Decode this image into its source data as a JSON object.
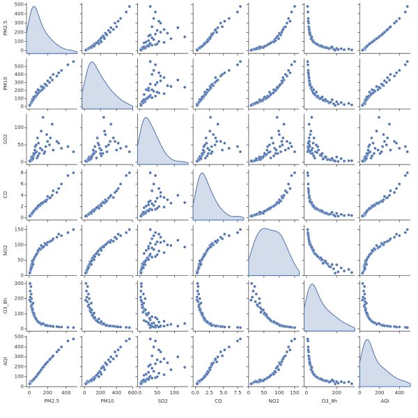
{
  "chart_data": {
    "type": "pairplot",
    "color": "#4c72b0",
    "variables": [
      {
        "name": "PM2.5",
        "lim": [
          -30,
          520
        ],
        "xticks": [
          0,
          200,
          400
        ],
        "yticks": [
          0,
          100,
          200,
          300,
          400,
          500
        ],
        "values": [
          20,
          35,
          15,
          50,
          80,
          120,
          160,
          220,
          300,
          420,
          25,
          40,
          60,
          90,
          10,
          30,
          45,
          70,
          100,
          140,
          190,
          250,
          350,
          480,
          18,
          22,
          28,
          38,
          55,
          65,
          85,
          110,
          130,
          170,
          200,
          260,
          12,
          8,
          33,
          42,
          48,
          75,
          95,
          150,
          180,
          230,
          320,
          5
        ]
      },
      {
        "name": "PM10",
        "lim": [
          -30,
          600
        ],
        "xticks": [
          0,
          200,
          400,
          600
        ],
        "yticks": [
          0,
          100,
          200,
          300,
          400,
          500
        ],
        "values": [
          45,
          70,
          35,
          95,
          140,
          190,
          230,
          300,
          380,
          520,
          60,
          80,
          110,
          160,
          25,
          55,
          100,
          120,
          170,
          210,
          260,
          330,
          450,
          560,
          40,
          50,
          65,
          75,
          105,
          130,
          150,
          200,
          250,
          280,
          320,
          400,
          30,
          20,
          90,
          85,
          120,
          180,
          210,
          240,
          270,
          360,
          420,
          15
        ]
      },
      {
        "name": "SO2",
        "lim": [
          -7,
          140
        ],
        "xticks": [
          0,
          50,
          100
        ],
        "yticks": [
          0,
          50,
          100
        ],
        "values": [
          8,
          12,
          5,
          20,
          30,
          40,
          25,
          50,
          60,
          45,
          15,
          9,
          35,
          70,
          3,
          6,
          18,
          28,
          55,
          35,
          80,
          110,
          40,
          30,
          4,
          10,
          7,
          14,
          22,
          45,
          12,
          25,
          90,
          30,
          60,
          35,
          2,
          4,
          16,
          11,
          25,
          50,
          18,
          130,
          45,
          70,
          55,
          3
        ]
      },
      {
        "name": "CO",
        "lim": [
          -0.4,
          8.6
        ],
        "xticks": [
          {
            "value": 0,
            "label": "0.0"
          },
          {
            "value": 2.5,
            "label": "2.5"
          },
          {
            "value": 5,
            "label": "5.0"
          },
          {
            "value": 7.5,
            "label": "7.5"
          }
        ],
        "yticks": [
          0,
          2,
          4,
          6,
          8
        ],
        "values": [
          0.6,
          0.9,
          0.5,
          1.2,
          1.6,
          2.2,
          2.8,
          3.5,
          4.5,
          7.5,
          0.8,
          1.0,
          1.4,
          1.9,
          0.4,
          0.7,
          1.1,
          1.5,
          2.0,
          2.5,
          3.2,
          4.0,
          6.0,
          8.0,
          0.5,
          0.6,
          0.7,
          0.9,
          1.3,
          1.5,
          1.8,
          2.3,
          2.6,
          3.0,
          3.8,
          4.8,
          0.3,
          0.4,
          0.8,
          1.0,
          1.2,
          1.7,
          2.1,
          2.7,
          2.9,
          3.6,
          5.2,
          0.3
        ]
      },
      {
        "name": "NO2",
        "lim": [
          0,
          165
        ],
        "xticks": [
          0,
          50,
          100,
          150
        ],
        "yticks": [
          0,
          50,
          100,
          150
        ],
        "values": [
          30,
          45,
          22,
          55,
          70,
          85,
          95,
          110,
          125,
          140,
          35,
          40,
          60,
          75,
          15,
          28,
          50,
          65,
          80,
          90,
          100,
          115,
          130,
          150,
          20,
          25,
          38,
          42,
          58,
          62,
          72,
          88,
          98,
          105,
          108,
          120,
          12,
          10,
          48,
          36,
          52,
          68,
          82,
          93,
          102,
          112,
          135,
          8
        ]
      },
      {
        "name": "O3_8h",
        "lim": [
          -15,
          320
        ],
        "xticks": [
          0,
          200
        ],
        "yticks": [
          0,
          100,
          200,
          300
        ],
        "values": [
          150,
          120,
          180,
          90,
          60,
          40,
          30,
          20,
          15,
          10,
          200,
          110,
          80,
          50,
          250,
          160,
          100,
          70,
          45,
          35,
          25,
          18,
          12,
          8,
          280,
          230,
          140,
          130,
          95,
          75,
          55,
          40,
          30,
          25,
          20,
          15,
          210,
          300,
          125,
          170,
          105,
          65,
          48,
          35,
          22,
          18,
          12,
          190
        ]
      },
      {
        "name": "AQI",
        "lim": [
          0,
          510
        ],
        "xticks": [
          0,
          200,
          400
        ],
        "yticks": [
          0,
          100,
          200,
          300,
          400,
          500
        ],
        "values": [
          45,
          60,
          55,
          75,
          105,
          155,
          205,
          270,
          350,
          460,
          50,
          65,
          85,
          120,
          40,
          52,
          70,
          95,
          135,
          185,
          240,
          300,
          400,
          480,
          48,
          50,
          55,
          62,
          80,
          90,
          115,
          145,
          170,
          220,
          250,
          310,
          35,
          30,
          58,
          68,
          72,
          100,
          125,
          195,
          230,
          280,
          370,
          28
        ]
      }
    ]
  }
}
